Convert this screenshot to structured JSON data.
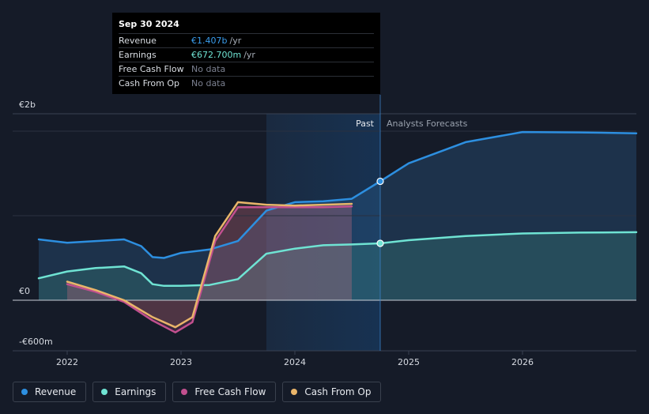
{
  "tooltip": {
    "date": "Sep 30 2024",
    "rows": [
      {
        "label": "Revenue",
        "value": "€1.407b",
        "unit": "/yr",
        "color": "#3a9ded"
      },
      {
        "label": "Earnings",
        "value": "€672.700m",
        "unit": "/yr",
        "color": "#6fe3d3"
      },
      {
        "label": "Free Cash Flow",
        "value": "No data",
        "unit": "",
        "color": "#7b8090"
      },
      {
        "label": "Cash From Op",
        "value": "No data",
        "unit": "",
        "color": "#7b8090"
      }
    ]
  },
  "legend": [
    {
      "label": "Revenue",
      "color": "#2d8fe0"
    },
    {
      "label": "Earnings",
      "color": "#6fe3d3"
    },
    {
      "label": "Free Cash Flow",
      "color": "#c2508f"
    },
    {
      "label": "Cash From Op",
      "color": "#e9b56a"
    }
  ],
  "chart_data": {
    "type": "line",
    "y_labels": {
      "top": "€2b",
      "zero": "€0",
      "bottom": "-€600m"
    },
    "ylim": [
      -600,
      2000
    ],
    "xlim": [
      2021.6,
      2027.0
    ],
    "x_ticks": [
      {
        "value": 2022,
        "label": "2022"
      },
      {
        "value": 2023,
        "label": "2023"
      },
      {
        "value": 2024,
        "label": "2024"
      },
      {
        "value": 2025,
        "label": "2025"
      },
      {
        "value": 2026,
        "label": "2026"
      }
    ],
    "past_label": "Past",
    "forecast_label": "Analysts Forecasts",
    "divider_x": 2024.75,
    "highlight_start_x": 2023.75,
    "series": [
      {
        "name": "Revenue",
        "color": "#2d8fe0",
        "points": [
          [
            2021.75,
            720
          ],
          [
            2022.0,
            680
          ],
          [
            2022.25,
            700
          ],
          [
            2022.5,
            720
          ],
          [
            2022.65,
            640
          ],
          [
            2022.75,
            510
          ],
          [
            2022.85,
            500
          ],
          [
            2023.0,
            560
          ],
          [
            2023.25,
            600
          ],
          [
            2023.5,
            700
          ],
          [
            2023.75,
            1060
          ],
          [
            2024.0,
            1160
          ],
          [
            2024.25,
            1170
          ],
          [
            2024.5,
            1200
          ],
          [
            2024.75,
            1407
          ],
          [
            2025.0,
            1620
          ],
          [
            2025.5,
            1870
          ],
          [
            2026.0,
            1990
          ],
          [
            2026.5,
            1985
          ],
          [
            2027.0,
            1975
          ]
        ],
        "forecast_from": 2024.75
      },
      {
        "name": "Earnings",
        "color": "#6fe3d3",
        "points": [
          [
            2021.75,
            260
          ],
          [
            2022.0,
            340
          ],
          [
            2022.25,
            380
          ],
          [
            2022.5,
            400
          ],
          [
            2022.65,
            320
          ],
          [
            2022.75,
            190
          ],
          [
            2022.85,
            170
          ],
          [
            2023.0,
            170
          ],
          [
            2023.25,
            180
          ],
          [
            2023.5,
            250
          ],
          [
            2023.75,
            550
          ],
          [
            2024.0,
            610
          ],
          [
            2024.25,
            650
          ],
          [
            2024.5,
            660
          ],
          [
            2024.75,
            672.7
          ],
          [
            2025.0,
            710
          ],
          [
            2025.5,
            760
          ],
          [
            2026.0,
            790
          ],
          [
            2026.5,
            800
          ],
          [
            2027.0,
            805
          ]
        ],
        "forecast_from": 2024.75
      },
      {
        "name": "Free Cash Flow",
        "color": "#c2508f",
        "points": [
          [
            2022.0,
            190
          ],
          [
            2022.25,
            100
          ],
          [
            2022.5,
            -20
          ],
          [
            2022.75,
            -240
          ],
          [
            2022.95,
            -380
          ],
          [
            2023.1,
            -260
          ],
          [
            2023.3,
            700
          ],
          [
            2023.5,
            1100
          ],
          [
            2023.75,
            1100
          ],
          [
            2024.0,
            1100
          ],
          [
            2024.25,
            1100
          ],
          [
            2024.5,
            1110
          ]
        ]
      },
      {
        "name": "Cash From Op",
        "color": "#e9b56a",
        "points": [
          [
            2022.0,
            220
          ],
          [
            2022.25,
            120
          ],
          [
            2022.5,
            0
          ],
          [
            2022.75,
            -200
          ],
          [
            2022.95,
            -320
          ],
          [
            2023.1,
            -200
          ],
          [
            2023.3,
            760
          ],
          [
            2023.5,
            1160
          ],
          [
            2023.75,
            1130
          ],
          [
            2024.0,
            1120
          ],
          [
            2024.25,
            1130
          ],
          [
            2024.5,
            1140
          ]
        ]
      }
    ]
  }
}
